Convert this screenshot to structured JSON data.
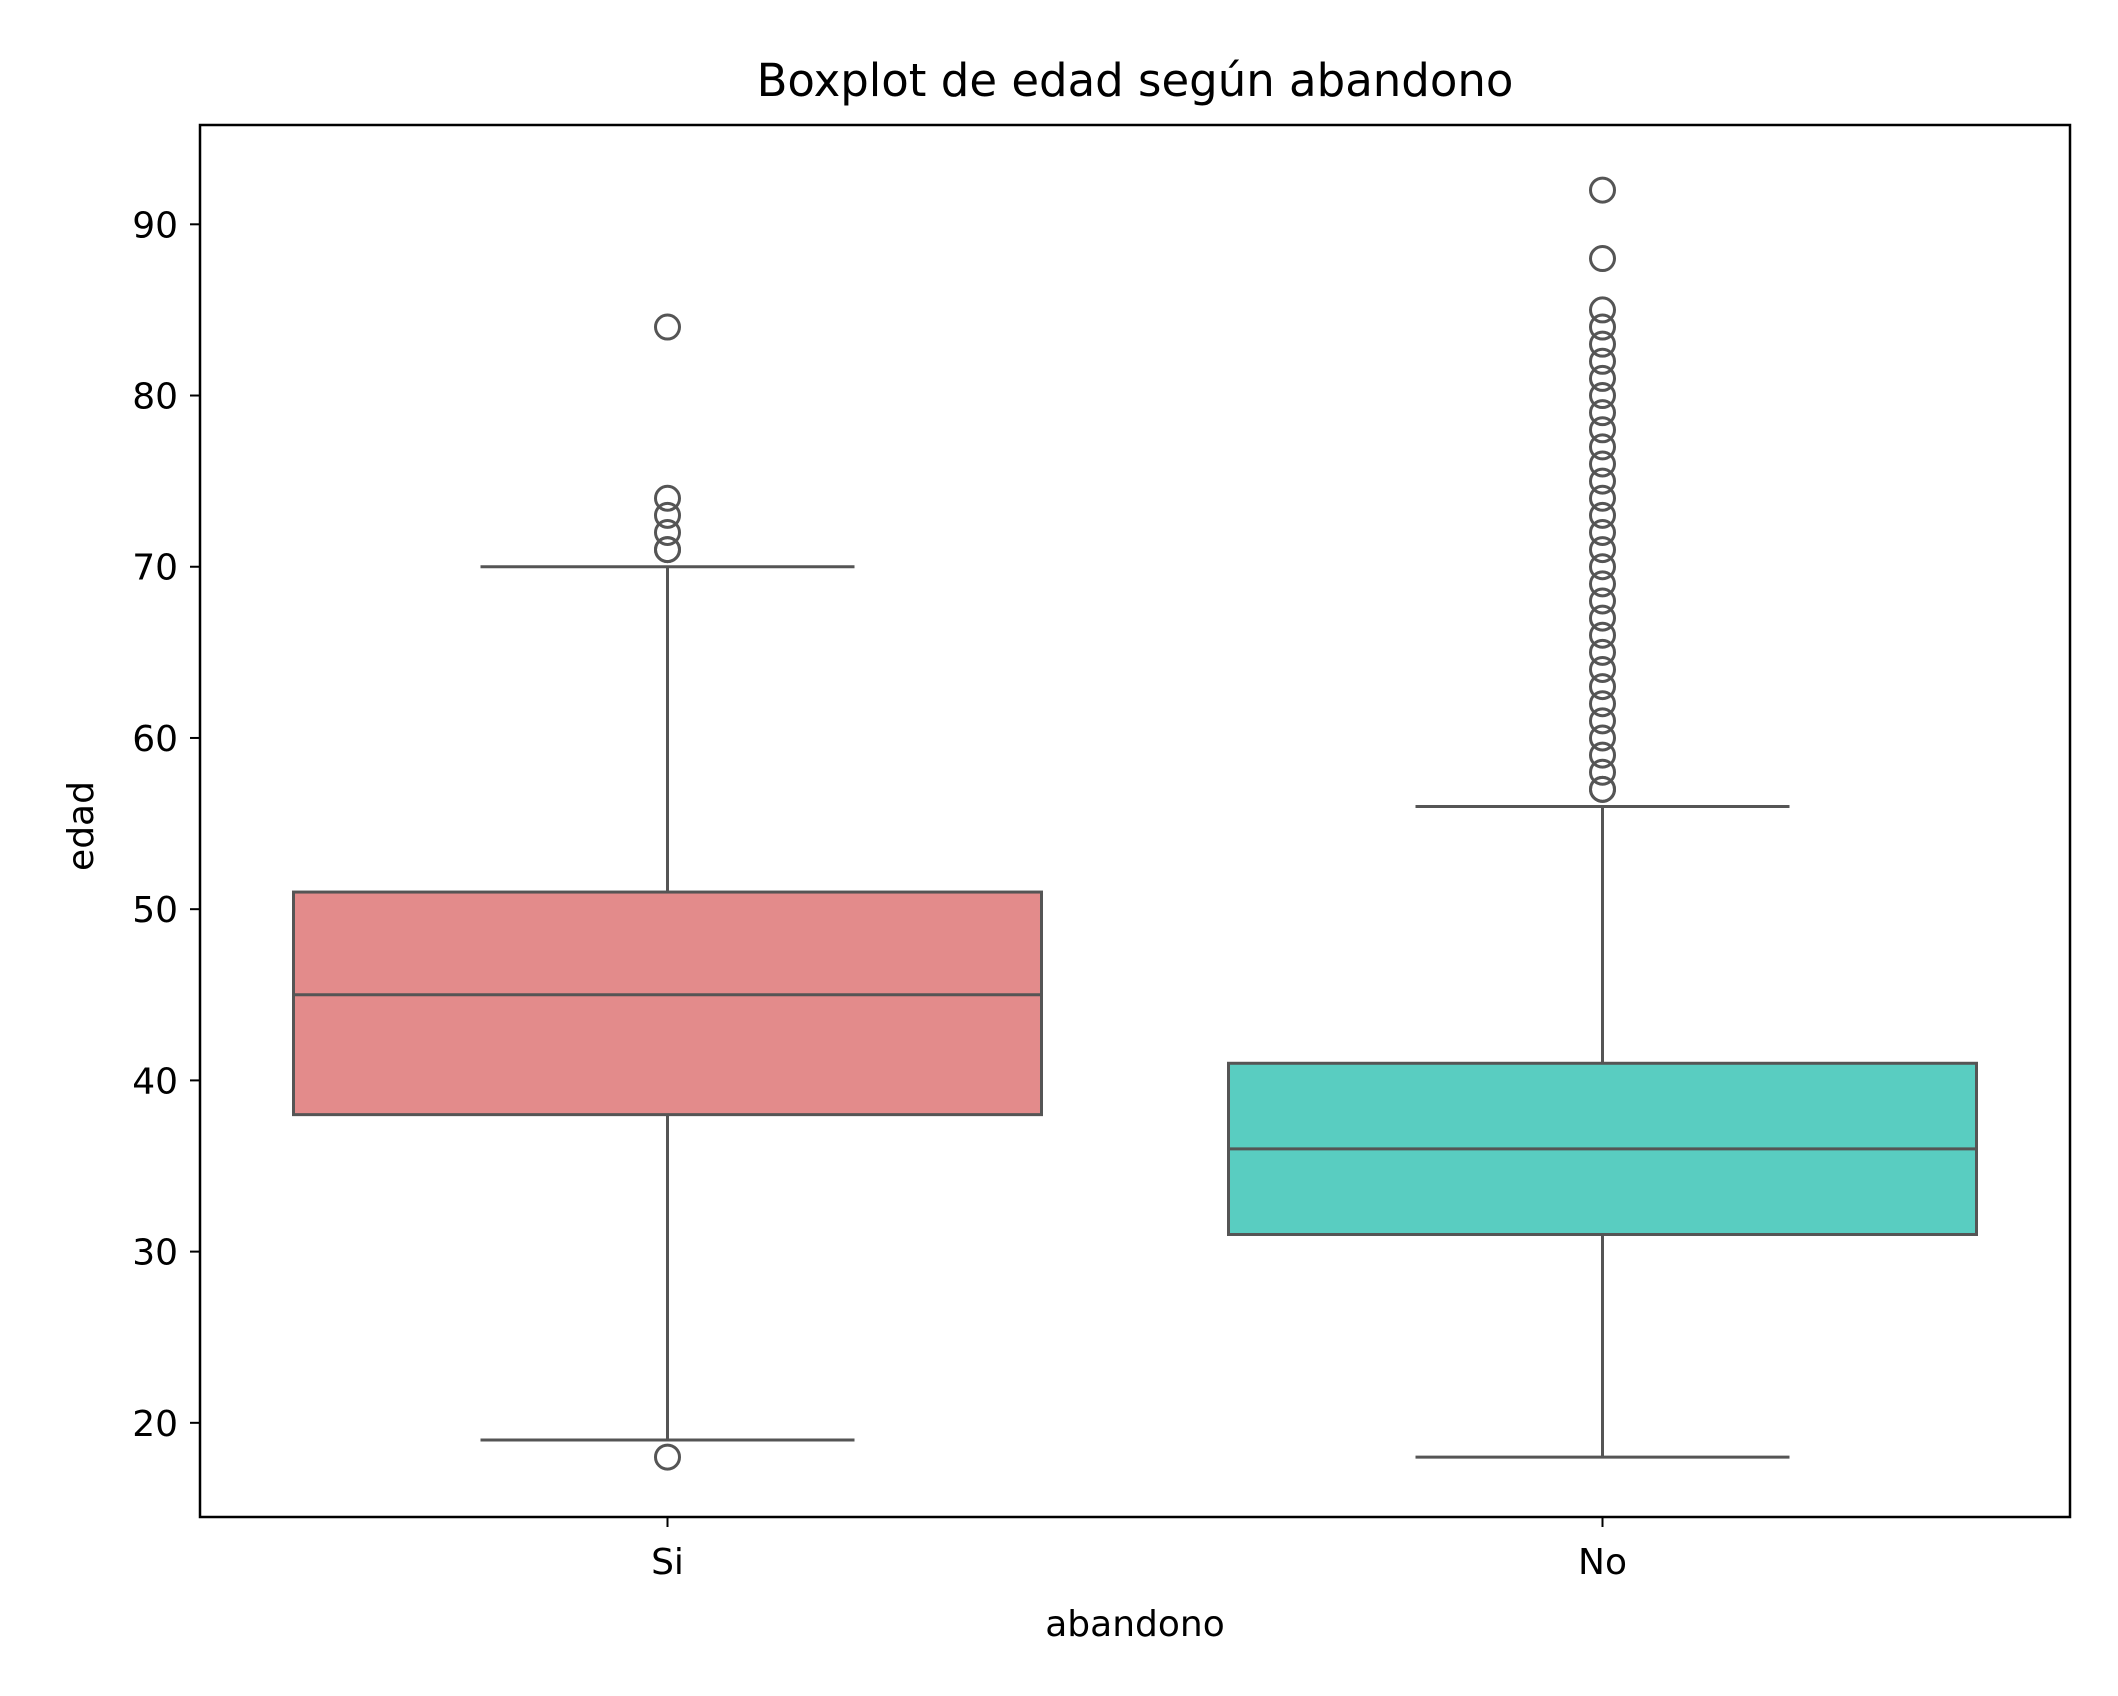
{
  "chart_data": {
    "type": "boxplot",
    "title": "Boxplot de edad según abandono",
    "xlabel": "abandono",
    "ylabel": "edad",
    "ylim": [
      14.5,
      95.8
    ],
    "yticks": [
      20,
      30,
      40,
      50,
      60,
      70,
      80,
      90
    ],
    "grid": false,
    "categories": [
      "Si",
      "No"
    ],
    "colors": [
      "#e38b8b",
      "#59cdc1"
    ],
    "edge_color": "#555555",
    "boxes": [
      {
        "category": "Si",
        "q1": 38,
        "median": 45,
        "q3": 51,
        "whisker_low": 19,
        "whisker_high": 70,
        "outliers": [
          18,
          71,
          71,
          72,
          73,
          74,
          84
        ]
      },
      {
        "category": "No",
        "q1": 31,
        "median": 36,
        "q3": 41,
        "whisker_low": 18,
        "whisker_high": 56,
        "outliers": [
          57,
          57,
          58,
          59,
          60,
          61,
          62,
          63,
          64,
          65,
          66,
          67,
          68,
          69,
          70,
          71,
          72,
          73,
          74,
          75,
          76,
          77,
          78,
          79,
          80,
          81,
          82,
          83,
          84,
          85,
          88,
          92
        ]
      }
    ]
  }
}
